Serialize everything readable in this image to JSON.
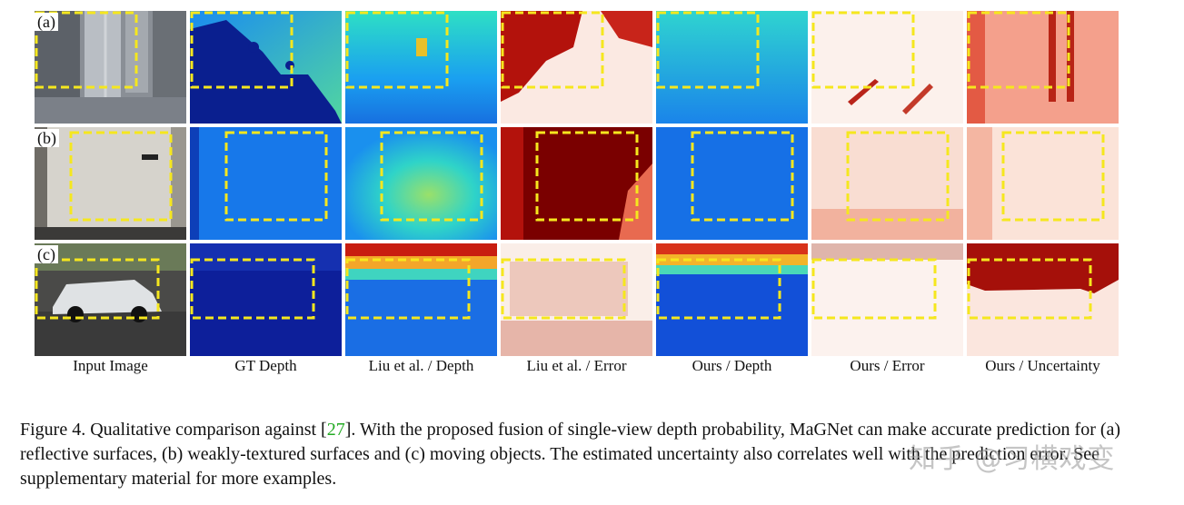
{
  "figure": {
    "row_labels": [
      "(a)",
      "(b)",
      "(c)"
    ],
    "column_labels": [
      "Input Image",
      "GT Depth",
      "Liu et al. / Depth",
      "Liu et al. / Error",
      "Ours / Depth",
      "Ours / Error",
      "Ours / Uncertainty"
    ],
    "caption_intro": "Figure 4.  Qualitative comparison against [",
    "caption_ref": "27",
    "caption_text": "].  With the proposed fusion of single-view depth probability, MaGNet can make accurate prediction for (a) reflective surfaces, (b) weakly-textured surfaces and (c) moving objects. The estimated uncertainty also correlates well with the prediction error. See supplementary material for more examples.",
    "watermark": "知乎 @习横戏变",
    "colors": {
      "highlight_box": "#f5e71e",
      "reference": "#22aa22",
      "depth_near": "#0a1f8f",
      "depth_far": "#7fe08a",
      "error_high": "#7a0000",
      "error_low": "#fbeee8"
    }
  }
}
